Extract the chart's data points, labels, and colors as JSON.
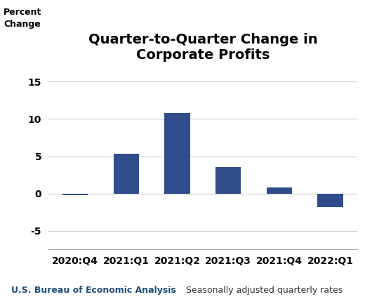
{
  "title": "Quarter-to-Quarter Change in\nCorporate Profits",
  "ylabel_line1": "Percent",
  "ylabel_line2": "Change",
  "categories": [
    "2020:Q4",
    "2021:Q1",
    "2021:Q2",
    "2021:Q3",
    "2021:Q4",
    "2022:Q1"
  ],
  "values": [
    -0.2,
    5.3,
    10.8,
    3.5,
    0.8,
    -1.8
  ],
  "bar_color": "#2E4D8A",
  "ylim": [
    -7.5,
    17
  ],
  "yticks": [
    -5,
    0,
    5,
    10,
    15
  ],
  "grid_color": "#cccccc",
  "background_color": "#ffffff",
  "footnote_left": "U.S. Bureau of Economic Analysis",
  "footnote_right": "Seasonally adjusted quarterly rates",
  "footnote_color": "#1F4E79",
  "title_fontsize": 14,
  "tick_fontsize": 10,
  "ylabel_fontsize": 9,
  "footnote_fontsize": 9
}
